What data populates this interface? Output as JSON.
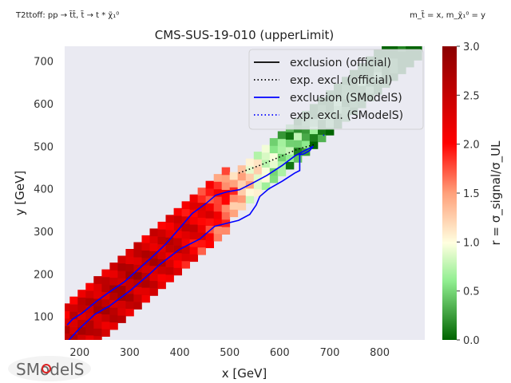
{
  "header": {
    "top_left": "T2ttoff: pp → t̃t̃, t̃ → t * χ̃₁⁰",
    "top_right": "m_t̃ = x, m_χ̃₁⁰ = y",
    "title": "CMS-SUS-19-010 (upperLimit)"
  },
  "colorbar": {
    "label": "r = σ_signal/σ_UL",
    "ticks": [
      "0.0",
      "0.5",
      "1.0",
      "1.5",
      "2.0",
      "2.5",
      "3.0"
    ],
    "colors": [
      "#006400",
      "#90ee90",
      "#ffffe0",
      "#ffa07a",
      "#ff0000",
      "#8b0000"
    ],
    "range": [
      0,
      3
    ]
  },
  "logo": {
    "text": "SModelS"
  },
  "chart_data": {
    "type": "heatmap",
    "title": "CMS-SUS-19-010 (upperLimit)",
    "xlabel": "x [GeV]",
    "ylabel": "y [GeV]",
    "xlim": [
      170,
      890
    ],
    "ylim": [
      45,
      735
    ],
    "x_ticks": [
      200,
      300,
      400,
      500,
      600,
      700,
      800
    ],
    "y_ticks": [
      100,
      200,
      300,
      400,
      500,
      600,
      700
    ],
    "grid": false,
    "background": "#eaeaf2",
    "cell_size": {
      "dx": 16,
      "dy": 17.5
    },
    "band": {
      "description_values": "diagonal strip of r values vs stop mass x",
      "points": [
        {
          "x": 176,
          "r": 2.5
        },
        {
          "x": 210,
          "r": 2.6
        },
        {
          "x": 250,
          "r": 2.6
        },
        {
          "x": 290,
          "r": 2.7
        },
        {
          "x": 330,
          "r": 2.6
        },
        {
          "x": 370,
          "r": 2.5
        },
        {
          "x": 410,
          "r": 2.4
        },
        {
          "x": 450,
          "r": 2.2
        },
        {
          "x": 490,
          "r": 1.9
        },
        {
          "x": 530,
          "r": 1.4
        },
        {
          "x": 560,
          "r": 1.1
        },
        {
          "x": 590,
          "r": 0.8
        },
        {
          "x": 620,
          "r": 0.6
        },
        {
          "x": 660,
          "r": 0.4
        },
        {
          "x": 700,
          "r": 0.3
        },
        {
          "x": 750,
          "r": 0.25
        },
        {
          "x": 800,
          "r": 0.2
        },
        {
          "x": 850,
          "r": 0.05
        }
      ]
    },
    "series": [
      {
        "name": "exclusion (official)",
        "color": "#000000",
        "style": "solid",
        "points": []
      },
      {
        "name": "exp. excl. (official)",
        "color": "#000000",
        "style": "dotted",
        "points": [
          [
            518,
            437
          ],
          [
            560,
            455
          ],
          [
            600,
            475
          ],
          [
            635,
            493
          ],
          [
            672,
            505
          ]
        ]
      },
      {
        "name": "exclusion (SModelS)",
        "color": "#0000ff",
        "style": "solid",
        "points": [
          [
            175,
            80
          ],
          [
            186,
            94
          ],
          [
            205,
            108
          ],
          [
            235,
            137
          ],
          [
            260,
            158
          ],
          [
            290,
            182
          ],
          [
            320,
            214
          ],
          [
            345,
            240
          ],
          [
            372,
            270
          ],
          [
            398,
            305
          ],
          [
            425,
            342
          ],
          [
            452,
            365
          ],
          [
            472,
            385
          ],
          [
            495,
            393
          ],
          [
            520,
            398
          ],
          [
            548,
            415
          ],
          [
            575,
            432
          ],
          [
            605,
            455
          ],
          [
            630,
            477
          ],
          [
            650,
            490
          ],
          [
            667,
            500
          ],
          [
            660,
            490
          ],
          [
            648,
            482
          ],
          [
            640,
            480
          ],
          [
            640,
            465
          ],
          [
            640,
            443
          ],
          [
            630,
            437
          ],
          [
            605,
            418
          ],
          [
            578,
            400
          ],
          [
            560,
            382
          ],
          [
            553,
            362
          ],
          [
            540,
            340
          ],
          [
            518,
            326
          ],
          [
            470,
            312
          ],
          [
            440,
            282
          ],
          [
            400,
            258
          ],
          [
            360,
            222
          ],
          [
            340,
            200
          ],
          [
            300,
            160
          ],
          [
            260,
            125
          ],
          [
            230,
            105
          ],
          [
            200,
            72
          ],
          [
            185,
            53
          ],
          [
            176,
            42
          ]
        ]
      },
      {
        "name": "exp. excl. (SModelS)",
        "color": "#0000ff",
        "style": "dotted",
        "points": [
          [
            687,
            525
          ],
          [
            690,
            528
          ]
        ]
      }
    ]
  }
}
